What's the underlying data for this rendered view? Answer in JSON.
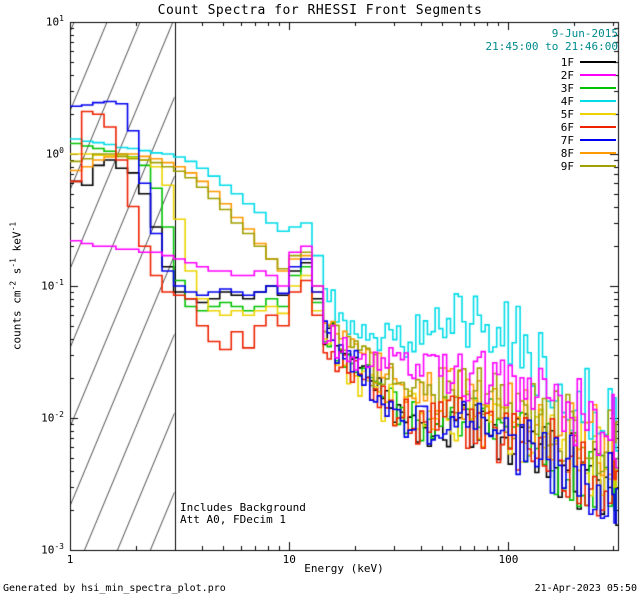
{
  "title": "Count Spectra for RHESSI Front Segments",
  "header": {
    "date": "9-Jun-2015",
    "time_range": "21:45:00 to 21:46:00",
    "color": "#008B8D"
  },
  "annotations": [
    "Includes Background",
    "Att A0, FDecim 1"
  ],
  "footer": {
    "left": "Generated by hsi_min_spectra_plot.pro",
    "right": "21-Apr-2023 05:50"
  },
  "chart_data": {
    "type": "line",
    "title": "Count Spectra for RHESSI Front Segments",
    "xlabel": "Energy (keV)",
    "ylabel": "counts cm^-2 s^-1 keV^-1",
    "x_scale": "log",
    "y_scale": "log",
    "x_range": [
      1,
      316
    ],
    "y_range": [
      0.001,
      10
    ],
    "x_ticks": [
      {
        "value": 1,
        "label": "1"
      },
      {
        "value": 10,
        "label": "10"
      },
      {
        "value": 100,
        "label": "100"
      }
    ],
    "y_ticks": [
      {
        "value": 10,
        "exp": 1
      },
      {
        "value": 1,
        "exp": 0
      },
      {
        "value": 0.1,
        "exp": -1
      },
      {
        "value": 0.01,
        "exp": -2
      },
      {
        "value": 0.001,
        "exp": -3
      }
    ],
    "grid": false,
    "legend_position": "top-right",
    "hatch_region": {
      "x_min": 1,
      "x_max": 3.0
    },
    "energies": [
      1.0,
      1.13,
      1.27,
      1.43,
      1.62,
      1.83,
      2.06,
      2.33,
      2.63,
      2.97,
      3.35,
      3.78,
      4.27,
      4.82,
      5.44,
      6.14,
      6.93,
      7.83,
      8.84,
      9.98,
      11.3,
      12.7,
      14.3,
      16.2,
      18.3,
      20.6,
      23.3,
      26.3,
      29.7,
      33.5,
      37.8,
      42.7,
      48.2,
      54.4,
      61.4,
      69.3,
      78.3,
      88.4,
      99.8,
      113,
      127,
      143,
      162,
      183,
      206,
      233,
      263,
      297
    ],
    "series": [
      {
        "name": "1F",
        "color": "#000000",
        "values": [
          0.62,
          0.58,
          0.82,
          0.9,
          0.78,
          0.72,
          0.5,
          0.28,
          0.14,
          0.09,
          0.08,
          0.075,
          0.08,
          0.09,
          0.085,
          0.08,
          0.09,
          0.1,
          0.085,
          0.13,
          0.15,
          0.08,
          0.045,
          0.033,
          0.028,
          0.023,
          0.019,
          0.015,
          0.012,
          0.01,
          0.009,
          0.0085,
          0.009,
          0.0095,
          0.009,
          0.0085,
          0.008,
          0.0075,
          0.007,
          0.0065,
          0.006,
          0.005,
          0.0045,
          0.004,
          0.0035,
          0.0038,
          0.003,
          0.0025
        ]
      },
      {
        "name": "2F",
        "color": "#FF00FF",
        "values": [
          0.22,
          0.21,
          0.2,
          0.2,
          0.19,
          0.19,
          0.18,
          0.18,
          0.17,
          0.16,
          0.15,
          0.14,
          0.13,
          0.13,
          0.12,
          0.12,
          0.13,
          0.12,
          0.1,
          0.18,
          0.2,
          0.1,
          0.045,
          0.033,
          0.03,
          0.028,
          0.026,
          0.025,
          0.024,
          0.023,
          0.022,
          0.022,
          0.021,
          0.021,
          0.02,
          0.02,
          0.019,
          0.018,
          0.017,
          0.016,
          0.015,
          0.014,
          0.013,
          0.012,
          0.011,
          0.01,
          0.009,
          0.0085
        ]
      },
      {
        "name": "3F",
        "color": "#00C300",
        "values": [
          1.2,
          1.15,
          1.1,
          1.05,
          1.0,
          0.95,
          0.82,
          0.55,
          0.28,
          0.11,
          0.07,
          0.065,
          0.07,
          0.075,
          0.07,
          0.065,
          0.07,
          0.08,
          0.07,
          0.12,
          0.14,
          0.075,
          0.042,
          0.03,
          0.024,
          0.02,
          0.017,
          0.014,
          0.012,
          0.011,
          0.01,
          0.0095,
          0.01,
          0.011,
          0.0105,
          0.01,
          0.009,
          0.0085,
          0.008,
          0.0075,
          0.007,
          0.006,
          0.005,
          0.0045,
          0.004,
          0.0035,
          0.003,
          0.0028
        ]
      },
      {
        "name": "4F",
        "color": "#00DCE8",
        "values": [
          1.3,
          1.25,
          1.22,
          1.18,
          1.12,
          1.1,
          1.06,
          1.02,
          1.0,
          0.95,
          0.88,
          0.78,
          0.68,
          0.58,
          0.5,
          0.42,
          0.36,
          0.3,
          0.26,
          0.28,
          0.3,
          0.17,
          0.09,
          0.065,
          0.055,
          0.048,
          0.043,
          0.04,
          0.04,
          0.042,
          0.046,
          0.05,
          0.055,
          0.058,
          0.055,
          0.058,
          0.05,
          0.045,
          0.04,
          0.032,
          0.026,
          0.021,
          0.017,
          0.014,
          0.012,
          0.011,
          0.0095,
          0.0085
        ]
      },
      {
        "name": "5F",
        "color": "#EDD400",
        "values": [
          1.0,
          1.0,
          0.98,
          0.97,
          0.96,
          0.94,
          0.9,
          0.8,
          0.58,
          0.32,
          0.13,
          0.08,
          0.065,
          0.06,
          0.065,
          0.06,
          0.065,
          0.07,
          0.062,
          0.1,
          0.12,
          0.065,
          0.038,
          0.028,
          0.023,
          0.019,
          0.016,
          0.013,
          0.012,
          0.011,
          0.01,
          0.0095,
          0.01,
          0.0105,
          0.01,
          0.0098,
          0.0095,
          0.009,
          0.0085,
          0.008,
          0.0075,
          0.007,
          0.0065,
          0.006,
          0.0055,
          0.005,
          0.0045,
          0.004
        ]
      },
      {
        "name": "6F",
        "color": "#EE2200",
        "values": [
          0.62,
          2.1,
          2.0,
          1.6,
          0.9,
          0.4,
          0.2,
          0.12,
          0.09,
          0.085,
          0.08,
          0.05,
          0.038,
          0.033,
          0.045,
          0.034,
          0.05,
          0.06,
          0.05,
          0.09,
          0.11,
          0.06,
          0.035,
          0.026,
          0.022,
          0.018,
          0.015,
          0.013,
          0.011,
          0.01,
          0.0092,
          0.0088,
          0.009,
          0.0095,
          0.009,
          0.0085,
          0.008,
          0.0075,
          0.007,
          0.0065,
          0.006,
          0.0055,
          0.005,
          0.0045,
          0.004,
          0.0035,
          0.003,
          0.0028
        ]
      },
      {
        "name": "7F",
        "color": "#0000EE",
        "values": [
          2.3,
          2.35,
          2.45,
          2.5,
          2.4,
          1.5,
          0.6,
          0.25,
          0.13,
          0.1,
          0.09,
          0.085,
          0.09,
          0.095,
          0.09,
          0.085,
          0.09,
          0.1,
          0.088,
          0.14,
          0.16,
          0.09,
          0.045,
          0.032,
          0.026,
          0.021,
          0.017,
          0.014,
          0.012,
          0.01,
          0.009,
          0.0082,
          0.0085,
          0.009,
          0.0085,
          0.008,
          0.0075,
          0.007,
          0.0065,
          0.006,
          0.0055,
          0.005,
          0.0045,
          0.004,
          0.0035,
          0.0032,
          0.0028,
          0.0025
        ]
      },
      {
        "name": "8F",
        "color": "#FF9900",
        "values": [
          0.75,
          0.8,
          0.9,
          0.95,
          1.0,
          1.0,
          0.96,
          0.92,
          0.86,
          0.8,
          0.72,
          0.62,
          0.52,
          0.42,
          0.33,
          0.27,
          0.21,
          0.16,
          0.13,
          0.16,
          0.17,
          0.09,
          0.05,
          0.038,
          0.031,
          0.026,
          0.023,
          0.02,
          0.018,
          0.017,
          0.016,
          0.015,
          0.0155,
          0.016,
          0.0155,
          0.015,
          0.014,
          0.013,
          0.012,
          0.011,
          0.01,
          0.009,
          0.008,
          0.0075,
          0.007,
          0.0065,
          0.006,
          0.0055
        ]
      },
      {
        "name": "9F",
        "color": "#A0A000",
        "values": [
          0.88,
          0.92,
          1.0,
          1.0,
          0.96,
          0.92,
          0.9,
          0.86,
          0.8,
          0.74,
          0.66,
          0.56,
          0.46,
          0.38,
          0.3,
          0.25,
          0.2,
          0.16,
          0.135,
          0.17,
          0.18,
          0.1,
          0.055,
          0.04,
          0.033,
          0.028,
          0.024,
          0.021,
          0.019,
          0.018,
          0.017,
          0.016,
          0.0165,
          0.017,
          0.016,
          0.015,
          0.014,
          0.013,
          0.012,
          0.011,
          0.0105,
          0.01,
          0.009,
          0.0085,
          0.008,
          0.0075,
          0.007,
          0.0065
        ]
      }
    ],
    "draw_order": [
      0,
      2,
      4,
      3,
      7,
      8,
      5,
      6,
      1
    ],
    "noise": {
      "start_index": 22,
      "base_sigma": 0.1,
      "sigma_growth": 0.009,
      "subdivisions": 3
    }
  }
}
